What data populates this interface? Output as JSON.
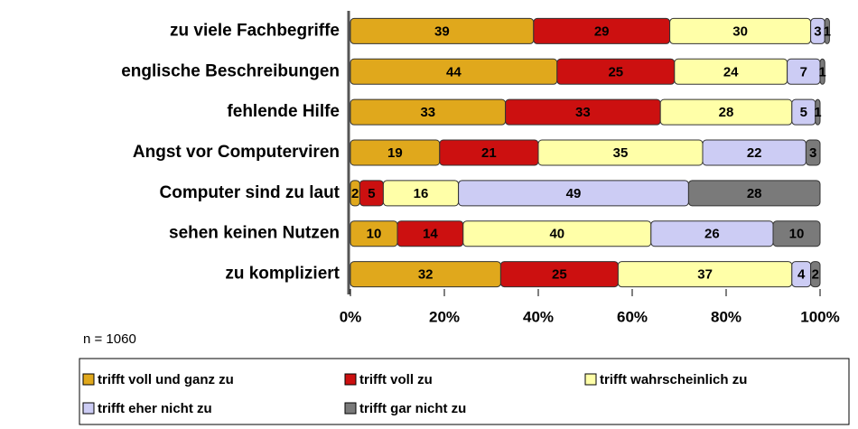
{
  "chart_data": {
    "type": "stacked_barh",
    "categories": [
      "zu viele Fachbegriffe",
      "englische Beschreibungen",
      "fehlende Hilfe",
      "Angst vor Computerviren",
      "Computer sind zu laut",
      "sehen keinen Nutzen",
      "zu kompliziert"
    ],
    "series": [
      {
        "name": "trifft voll und ganz zu",
        "color": "#e0a81c",
        "values": [
          39,
          44,
          33,
          19,
          2,
          10,
          32
        ]
      },
      {
        "name": "trifft voll zu",
        "color": "#cc1010",
        "values": [
          29,
          25,
          33,
          21,
          5,
          14,
          25
        ]
      },
      {
        "name": "trifft wahrscheinlich zu",
        "color": "#ffffa8",
        "values": [
          30,
          24,
          28,
          35,
          16,
          40,
          37
        ]
      },
      {
        "name": "trifft eher nicht zu",
        "color": "#ccccf4",
        "values": [
          3,
          7,
          5,
          22,
          49,
          26,
          4
        ]
      },
      {
        "name": "trifft gar nicht zu",
        "color": "#7a7a7a",
        "values": [
          1,
          1,
          1,
          3,
          28,
          10,
          2
        ]
      }
    ],
    "xlim": [
      0,
      100
    ],
    "xticks": [
      {
        "value": 0,
        "label": "0%"
      },
      {
        "value": 20,
        "label": "20%"
      },
      {
        "value": 40,
        "label": "40%"
      },
      {
        "value": 60,
        "label": "60%"
      },
      {
        "value": 80,
        "label": "80%"
      },
      {
        "value": 100,
        "label": "100%"
      }
    ],
    "annotation": "n = 1060",
    "legend": "bottom"
  }
}
